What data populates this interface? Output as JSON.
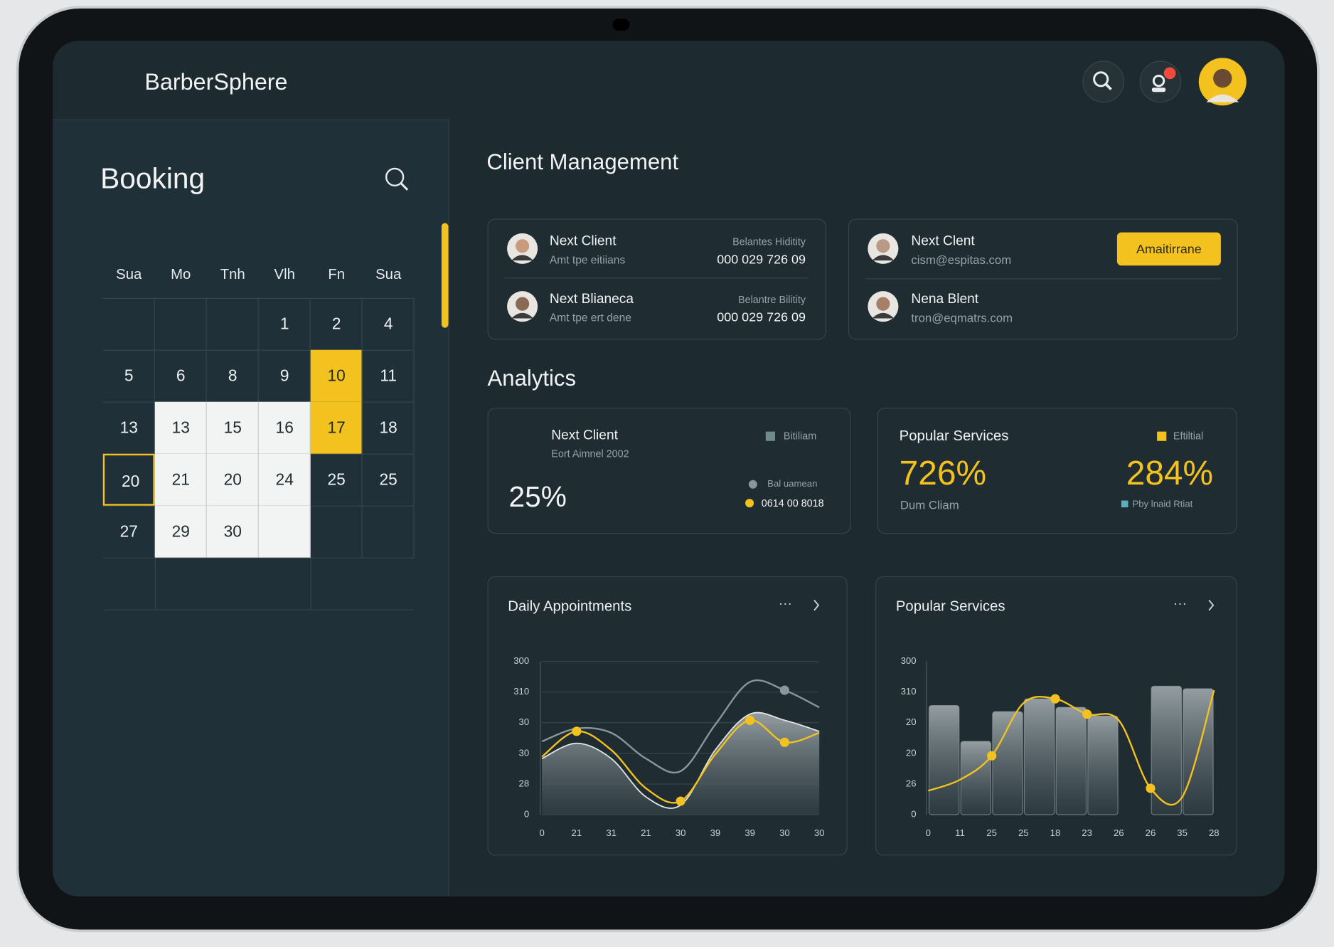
{
  "header": {
    "brand": "BarberSphere"
  },
  "booking": {
    "title": "Booking",
    "weekdays": [
      "Sua",
      "Mo",
      "Tnh",
      "Vlh",
      "Fn",
      "Sua"
    ],
    "rows": [
      [
        null,
        null,
        null,
        1,
        2,
        4
      ],
      [
        5,
        6,
        8,
        9,
        10,
        11
      ],
      [
        13,
        13,
        15,
        16,
        17,
        18
      ],
      [
        20,
        21,
        20,
        24,
        25,
        25
      ],
      [
        27,
        29,
        30,
        null,
        null,
        null
      ]
    ]
  },
  "client_management": {
    "title": "Client Management",
    "card1": [
      {
        "name": "Next Client",
        "sub": "Amt tpe eitiians",
        "label": "Belantes Hiditity",
        "phone": "000 029 726 09"
      },
      {
        "name": "Next Blianeca",
        "sub": "Amt tpe ert dene",
        "label": "Belantre Bilitity",
        "phone": "000 029 726 09"
      }
    ],
    "card2": {
      "button": "Amaitirrane",
      "clients": [
        {
          "name": "Next Clent",
          "email": "cism@espitas.com"
        },
        {
          "name": "Nena Blent",
          "email": "tron@eqmatrs.com"
        }
      ]
    }
  },
  "analytics": {
    "title": "Analytics",
    "card1": {
      "name": "Next Client",
      "sub": "Eort Aimnel 2002",
      "legend": "Bitiliam",
      "value": "25%",
      "legend2": "Bal uamean",
      "legend3": "0614 00 8018"
    },
    "card2": {
      "title": "Popular Services",
      "legend": "Eftiltial",
      "value1": "726%",
      "caption1": "Dum Cliam",
      "value2": "284%",
      "caption2": "Pby lnaid Rtiat"
    }
  },
  "chart_data": [
    {
      "type": "line",
      "title": "Daily Appointments",
      "categories": [
        "0",
        "21",
        "31",
        "21",
        "30",
        "39",
        "39",
        "30",
        "30"
      ],
      "ylim": [
        0,
        5
      ],
      "yticks": [
        0,
        {
          "value": 1,
          "label": "28"
        },
        {
          "value": 2,
          "label": "30"
        },
        {
          "value": 3,
          "label": "30"
        },
        {
          "value": 4,
          "label": "310"
        },
        {
          "value": 5,
          "label": "300"
        }
      ],
      "grid": true,
      "series": [
        {
          "type": "area",
          "color": "#9aa4a8",
          "values": [
            1.83,
            2.33,
            1.83,
            0.58,
            0.31,
            2.11,
            3.28,
            3.08,
            2.72
          ]
        },
        {
          "type": "line",
          "color": "#8a969b",
          "values": [
            2.39,
            2.81,
            2.67,
            1.83,
            1.42,
            2.94,
            4.33,
            4.06,
            3.5
          ],
          "markers": [
            7
          ]
        },
        {
          "type": "line",
          "color": "#f4c21f",
          "values": [
            1.89,
            2.72,
            2.11,
            0.86,
            0.44,
            1.97,
            3.08,
            2.36,
            2.67
          ],
          "markers": [
            1,
            4,
            6,
            7
          ]
        }
      ]
    },
    {
      "type": "bar",
      "title": "Popular Services",
      "categories": [
        "0",
        "11",
        "25",
        "25",
        "18",
        "23",
        "26",
        "26",
        "35",
        "28"
      ],
      "ylim": [
        0,
        5
      ],
      "yticks": [
        0,
        {
          "value": 1,
          "label": "26"
        },
        {
          "value": 2,
          "label": "20"
        },
        {
          "value": 3,
          "label": "20"
        },
        {
          "value": 4,
          "label": "310"
        },
        {
          "value": 5,
          "label": "300"
        }
      ],
      "grid": false,
      "series": [
        {
          "type": "bar",
          "color": "#9aa4a8",
          "values": [
            3.56,
            2.39,
            3.36,
            3.78,
            3.5,
            3.22,
            null,
            4.19,
            4.11,
            null
          ]
        },
        {
          "type": "line",
          "color": "#f4c21f",
          "values": [
            0.78,
            1.14,
            1.92,
            3.64,
            3.78,
            3.28,
            3.08,
            0.86,
            0.58,
            4.06
          ],
          "markers": [
            2,
            4,
            5,
            7
          ]
        }
      ]
    }
  ]
}
